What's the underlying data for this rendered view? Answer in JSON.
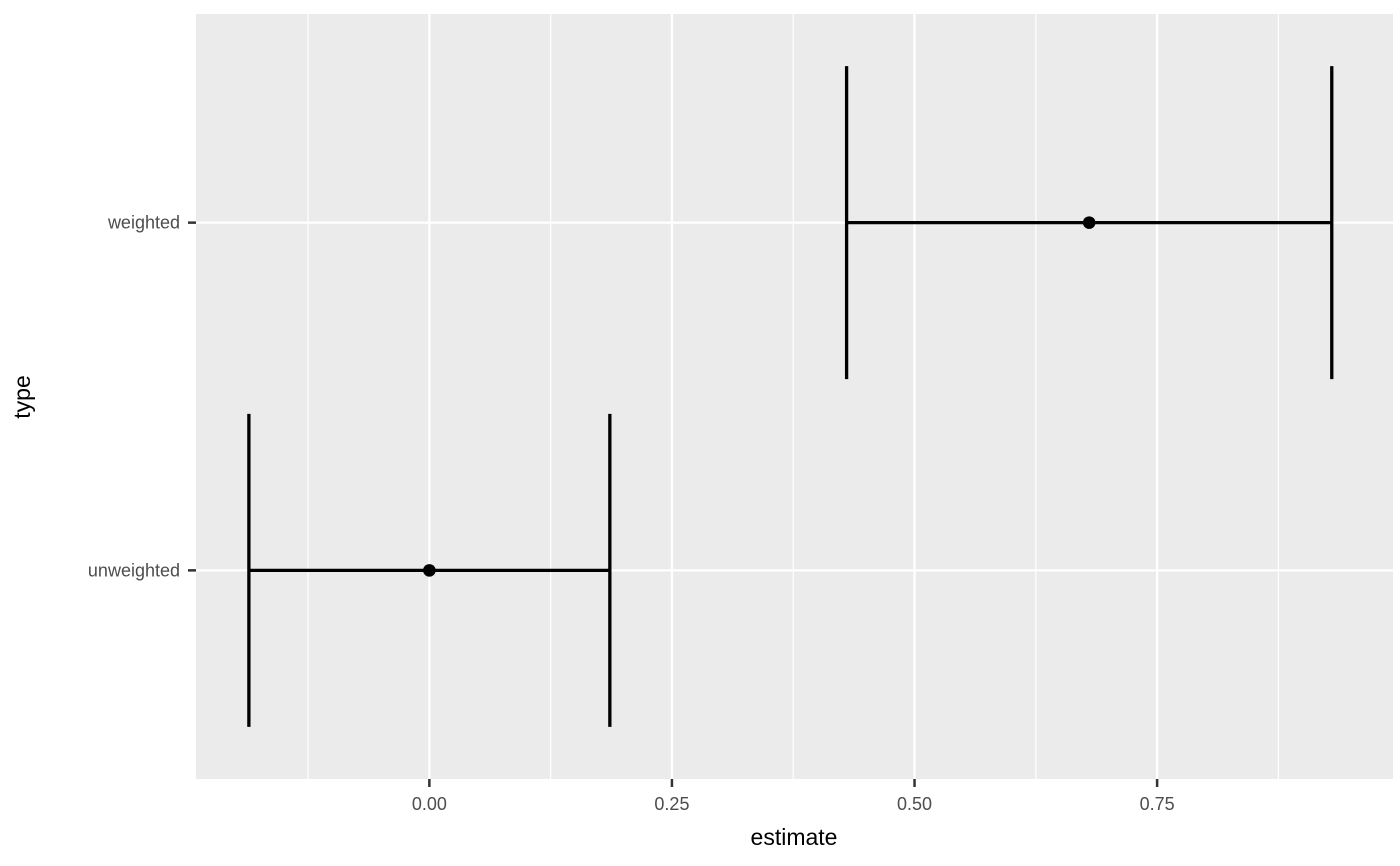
{
  "chart_data": {
    "type": "pointrange",
    "orientation": "horizontal",
    "title": "",
    "xlabel": "estimate",
    "ylabel": "type",
    "categories": [
      "weighted",
      "unweighted"
    ],
    "series": [
      {
        "category": "weighted",
        "estimate": 0.68,
        "ci_low": 0.43,
        "ci_high": 0.93
      },
      {
        "category": "unweighted",
        "estimate": 0.0,
        "ci_low": -0.186,
        "ci_high": 0.186
      }
    ],
    "x_axis": {
      "label": "estimate",
      "ticks": [
        0.0,
        0.25,
        0.5,
        0.75
      ],
      "tick_labels": [
        "0.00",
        "0.25",
        "0.50",
        "0.75"
      ],
      "minor_ticks": [
        -0.125,
        0.125,
        0.375,
        0.625,
        0.875
      ],
      "range": [
        -0.2405,
        0.9931
      ]
    },
    "y_axis": {
      "label": "type",
      "tick_labels": [
        "weighted",
        "unweighted"
      ],
      "positions": [
        2,
        1
      ],
      "range": [
        0.4,
        2.6
      ]
    },
    "error_bar_cap_half_width": 0.45,
    "grid": true,
    "legend": false,
    "style": {
      "panel_bg": "#EBEBEB",
      "grid_color": "#FFFFFF",
      "data_color": "#000000",
      "tick_label_color": "#4D4D4D",
      "axis_title_color": "#000000",
      "tick_mark_color": "#333333",
      "outer_bg": "#FFFFFF"
    }
  }
}
